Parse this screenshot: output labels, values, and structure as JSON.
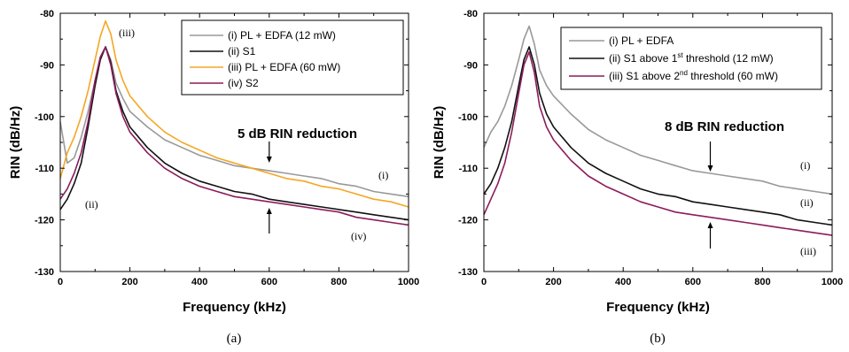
{
  "chart_data": [
    {
      "type": "line",
      "subplot_label": "(a)",
      "xlabel": "Frequency (kHz)",
      "ylabel": "RIN (dB/Hz)",
      "xlim": [
        0,
        1000
      ],
      "ylim": [
        -130,
        -80
      ],
      "xticks": [
        "0",
        "200",
        "400",
        "600",
        "800",
        "1000"
      ],
      "yticks": [
        "-80",
        "-90",
        "-100",
        "-110",
        "-120",
        "-130"
      ],
      "grid": false,
      "legend_position": "top-right",
      "annotation": "5 dB RIN reduction",
      "arrow_x": 600,
      "arrow_from": [
        -107,
        -123
      ],
      "arrow_to": [
        -111.5,
        -116.5
      ],
      "series": [
        {
          "name": "(i) PL + EDFA (12 mW)",
          "color": "#999999",
          "curve_label": "(i)",
          "x": [
            0,
            20,
            40,
            60,
            80,
            100,
            115,
            130,
            145,
            160,
            180,
            200,
            250,
            300,
            350,
            400,
            450,
            500,
            550,
            600,
            650,
            700,
            750,
            800,
            850,
            900,
            950,
            1000
          ],
          "y": [
            -101,
            -109,
            -108,
            -104,
            -99,
            -93,
            -88.5,
            -86.5,
            -89,
            -93.5,
            -96.5,
            -99,
            -102,
            -104.5,
            -106,
            -107.5,
            -108.5,
            -109.5,
            -110,
            -110.5,
            -111,
            -111.5,
            -112,
            -113,
            -113.5,
            -114.5,
            -115,
            -115.5
          ]
        },
        {
          "name": "(ii) S1",
          "color": "#111111",
          "curve_label": "(ii)",
          "x": [
            0,
            20,
            40,
            60,
            80,
            100,
            115,
            130,
            145,
            160,
            180,
            200,
            250,
            300,
            350,
            400,
            450,
            500,
            550,
            600,
            650,
            700,
            750,
            800,
            850,
            900,
            950,
            1000
          ],
          "y": [
            -118,
            -116,
            -113,
            -109,
            -102,
            -94,
            -89,
            -86.5,
            -89.5,
            -95,
            -99,
            -102,
            -106,
            -109,
            -111,
            -112.5,
            -113.5,
            -114.5,
            -115,
            -116,
            -116.5,
            -117,
            -117.5,
            -118,
            -118.5,
            -119,
            -119.5,
            -120
          ]
        },
        {
          "name": "(iii) PL + EDFA (60 mW)",
          "color": "#f5a623",
          "curve_label": "(iii)",
          "x": [
            0,
            20,
            40,
            60,
            80,
            100,
            115,
            130,
            145,
            160,
            180,
            200,
            250,
            300,
            350,
            400,
            450,
            500,
            550,
            600,
            650,
            700,
            750,
            800,
            850,
            900,
            950,
            1000
          ],
          "y": [
            -112,
            -107,
            -104,
            -100,
            -95,
            -89,
            -84.5,
            -81.5,
            -84,
            -89,
            -93,
            -96,
            -100,
            -103,
            -105,
            -106.5,
            -108,
            -109,
            -110,
            -111,
            -112,
            -112.5,
            -113.5,
            -114,
            -115,
            -116,
            -116.5,
            -117.5
          ]
        },
        {
          "name": "(iv) S2",
          "color": "#8b1c5c",
          "curve_label": "(iv)",
          "x": [
            0,
            20,
            40,
            60,
            80,
            100,
            115,
            130,
            145,
            160,
            180,
            200,
            250,
            300,
            350,
            400,
            450,
            500,
            550,
            600,
            650,
            700,
            750,
            800,
            850,
            900,
            950,
            1000
          ],
          "y": [
            -116,
            -114,
            -111,
            -107,
            -101,
            -93,
            -88.5,
            -86.5,
            -90,
            -95.5,
            -100,
            -103,
            -107,
            -110,
            -112,
            -113.5,
            -114.5,
            -115.5,
            -116,
            -116.5,
            -117,
            -117.5,
            -118,
            -118.5,
            -119.5,
            -120,
            -120.5,
            -121
          ]
        }
      ]
    },
    {
      "type": "line",
      "subplot_label": "(b)",
      "xlabel": "Frequency (kHz)",
      "ylabel": "RIN (dB/Hz)",
      "xlim": [
        0,
        1000
      ],
      "ylim": [
        -130,
        -80
      ],
      "xticks": [
        "0",
        "200",
        "400",
        "600",
        "800",
        "1000"
      ],
      "yticks": [
        "-80",
        "-90",
        "-100",
        "-110",
        "-120",
        "-130"
      ],
      "grid": false,
      "legend_position": "top-right",
      "annotation": "8 dB RIN reduction",
      "arrow_x": 650,
      "arrow_from": [
        -105,
        -127
      ],
      "arrow_to": [
        -112,
        -119.5
      ],
      "series": [
        {
          "name": "(i) PL + EDFA",
          "color": "#999999",
          "curve_label": "(i)",
          "x": [
            0,
            20,
            40,
            60,
            80,
            100,
            115,
            130,
            145,
            160,
            180,
            200,
            250,
            300,
            350,
            400,
            450,
            500,
            550,
            600,
            650,
            700,
            750,
            800,
            850,
            900,
            950,
            1000
          ],
          "y": [
            -106,
            -103,
            -101,
            -98,
            -94,
            -89,
            -85,
            -82.5,
            -86,
            -91,
            -94,
            -96,
            -99.5,
            -102.5,
            -104.5,
            -106,
            -107.5,
            -108.5,
            -109.5,
            -110.5,
            -111,
            -111.5,
            -112,
            -112.5,
            -113.5,
            -114,
            -114.5,
            -115
          ]
        },
        {
          "name": "(ii) S1 above 1st threshold (12 mW)",
          "name_main": "(ii) S1 above 1",
          "name_sup": "st",
          "name_tail": " threshold (12 mW)",
          "color": "#111111",
          "curve_label": "(ii)",
          "x": [
            0,
            20,
            40,
            60,
            80,
            100,
            115,
            130,
            145,
            160,
            180,
            200,
            250,
            300,
            350,
            400,
            450,
            500,
            550,
            600,
            650,
            700,
            750,
            800,
            850,
            900,
            950,
            1000
          ],
          "y": [
            -115,
            -113,
            -110,
            -106,
            -101,
            -94,
            -89,
            -86.5,
            -90,
            -95.5,
            -99.5,
            -102,
            -106,
            -109,
            -111,
            -112.5,
            -114,
            -115,
            -115.5,
            -116.5,
            -117,
            -117.5,
            -118,
            -118.5,
            -119,
            -120,
            -120.5,
            -121
          ]
        },
        {
          "name": "(iii) S1 above 2nd threshold (60 mW)",
          "name_main": "(iii) S1 above 2",
          "name_sup": "nd",
          "name_tail": " threshold (60 mW)",
          "color": "#8b1c5c",
          "curve_label": "(iii)",
          "x": [
            0,
            20,
            40,
            60,
            80,
            100,
            115,
            130,
            145,
            160,
            180,
            200,
            250,
            300,
            350,
            400,
            450,
            500,
            550,
            600,
            650,
            700,
            750,
            800,
            850,
            900,
            950,
            1000
          ],
          "y": [
            -119,
            -116,
            -113,
            -109,
            -103,
            -95.5,
            -90,
            -87.5,
            -91.5,
            -98,
            -102,
            -104.5,
            -108.5,
            -111.5,
            -113.5,
            -115,
            -116.5,
            -117.5,
            -118.5,
            -119,
            -119.5,
            -120,
            -120.5,
            -121,
            -121.5,
            -122,
            -122.5,
            -123
          ]
        }
      ]
    }
  ]
}
